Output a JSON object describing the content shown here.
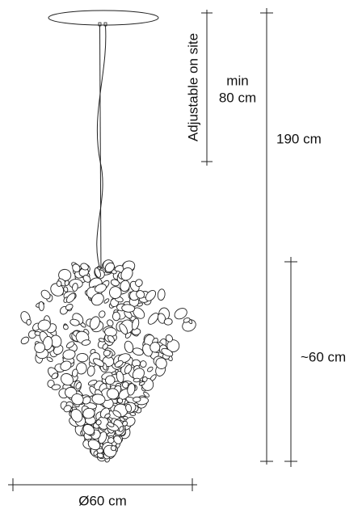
{
  "labels": {
    "adjustable": "Adjustable on site",
    "min": "min",
    "min_length": "80 cm",
    "total_height": "190 cm",
    "body_height": "~60 cm",
    "diameter": "Ø60 cm"
  }
}
